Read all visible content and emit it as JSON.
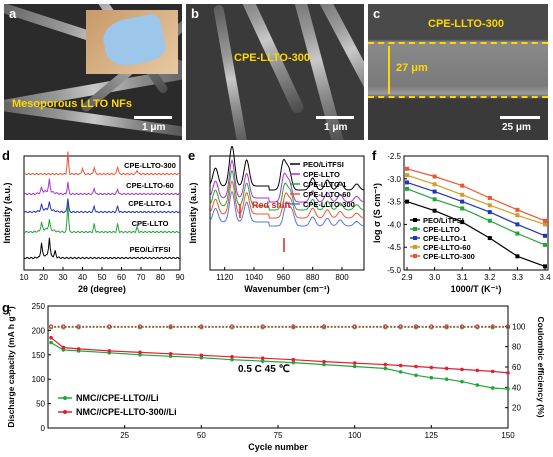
{
  "panels": {
    "a": {
      "label": "a",
      "caption": "Mesoporous LLTO NFs",
      "scale": "1 μm"
    },
    "b": {
      "label": "b",
      "caption": "CPE-LLTO-300",
      "scale": "1 μm"
    },
    "c": {
      "label": "c",
      "caption": "CPE-LLTO-300",
      "thickness": "27 μm",
      "scale": "25 μm"
    },
    "d": {
      "label": "d"
    },
    "e": {
      "label": "e"
    },
    "f": {
      "label": "f"
    },
    "g": {
      "label": "g"
    }
  },
  "chart_data": [
    {
      "panel": "d",
      "type": "line",
      "xlabel": "2θ (degree)",
      "ylabel": "Intensity (a.u.)",
      "xlim": [
        10,
        90
      ],
      "xticks": [
        10,
        20,
        30,
        40,
        50,
        60,
        70,
        80,
        90
      ],
      "series": [
        {
          "name": "PEO/LiTFSI",
          "color": "#000000"
        },
        {
          "name": "CPE-LLTO",
          "color": "#22a63a"
        },
        {
          "name": "CPE-LLTO-1",
          "color": "#2233bb"
        },
        {
          "name": "CPE-LLTO-60",
          "color": "#aa33cc"
        },
        {
          "name": "CPE-LLTO-300",
          "color": "#ee5533"
        }
      ]
    },
    {
      "panel": "e",
      "type": "line",
      "xlabel": "Wavenumber (cm⁻¹)",
      "ylabel": "Intensity (a.u.)",
      "xticks": [
        1120,
        1040,
        960,
        880,
        800
      ],
      "annotation": "Red shift",
      "series": [
        {
          "name": "PEO/LiTFSI",
          "color": "#000000"
        },
        {
          "name": "CPE-LLTO",
          "color": "#aa33cc"
        },
        {
          "name": "CPE-LLTO-1",
          "color": "#22a63a"
        },
        {
          "name": "CPE-LLTO-60",
          "color": "#ee5533"
        },
        {
          "name": "CPE-LLTO-300",
          "color": "#5577dd"
        }
      ]
    },
    {
      "panel": "f",
      "type": "line",
      "xlabel": "1000/T (K⁻¹)",
      "ylabel": "log σ (S cm⁻¹)",
      "xlim": [
        2.9,
        3.4
      ],
      "ylim": [
        -5.0,
        -2.5
      ],
      "xticks": [
        2.9,
        3.0,
        3.1,
        3.2,
        3.3,
        3.4
      ],
      "yticks": [
        -2.5,
        -3.0,
        -3.5,
        -4.0,
        -4.5,
        -5.0
      ],
      "x": [
        2.9,
        3.0,
        3.1,
        3.2,
        3.3,
        3.4
      ],
      "series": [
        {
          "name": "PEO/LiTFSI",
          "color": "#000000",
          "marker": "square",
          "values": [
            -3.5,
            -3.7,
            -3.95,
            -4.3,
            -4.7,
            -4.92
          ]
        },
        {
          "name": "CPE-LLTO",
          "color": "#22a63a",
          "marker": "square",
          "values": [
            -3.22,
            -3.45,
            -3.65,
            -3.92,
            -4.2,
            -4.45
          ]
        },
        {
          "name": "CPE-LLTO-1",
          "color": "#2233bb",
          "marker": "square",
          "values": [
            -3.08,
            -3.28,
            -3.5,
            -3.73,
            -4.0,
            -4.25
          ]
        },
        {
          "name": "CPE-LLTO-60",
          "color": "#d29a2a",
          "marker": "square",
          "values": [
            -2.92,
            -3.12,
            -3.35,
            -3.58,
            -3.8,
            -4.0
          ]
        },
        {
          "name": "CPE-LLTO-300",
          "color": "#ee5533",
          "marker": "square",
          "values": [
            -2.78,
            -2.95,
            -3.15,
            -3.42,
            -3.68,
            -3.92
          ]
        }
      ]
    },
    {
      "panel": "g",
      "type": "scatter",
      "xlabel": "Cycle number",
      "ylabel": "Discharge capacity (mA h g⁻¹)",
      "y2label": "Coulombic efficiency (%)",
      "xlim": [
        0,
        150
      ],
      "ylim": [
        0,
        250
      ],
      "y2lim": [
        0,
        120
      ],
      "xticks": [
        25,
        50,
        75,
        100,
        125,
        150
      ],
      "yticks": [
        0,
        50,
        100,
        150,
        200,
        250
      ],
      "y2ticks": [
        20,
        40,
        60,
        80,
        100
      ],
      "annotation": "0.5 C  45 ℃",
      "x": [
        1,
        5,
        10,
        20,
        30,
        40,
        50,
        60,
        70,
        80,
        90,
        100,
        110,
        115,
        120,
        125,
        130,
        135,
        140,
        145,
        150
      ],
      "series": [
        {
          "name": "NMC//CPE-LLTO//Li",
          "color": "#22a63a",
          "values": [
            175,
            160,
            158,
            154,
            150,
            147,
            144,
            140,
            137,
            134,
            130,
            126,
            122,
            115,
            108,
            103,
            100,
            95,
            88,
            82,
            80
          ],
          "efficiency": 99
        },
        {
          "name": "NMC//CPE-LLTO-300//Li",
          "color": "#dd2233",
          "values": [
            185,
            165,
            162,
            158,
            155,
            152,
            149,
            146,
            143,
            140,
            136,
            133,
            130,
            128,
            126,
            124,
            122,
            120,
            118,
            116,
            113
          ],
          "efficiency": 100
        }
      ]
    }
  ]
}
